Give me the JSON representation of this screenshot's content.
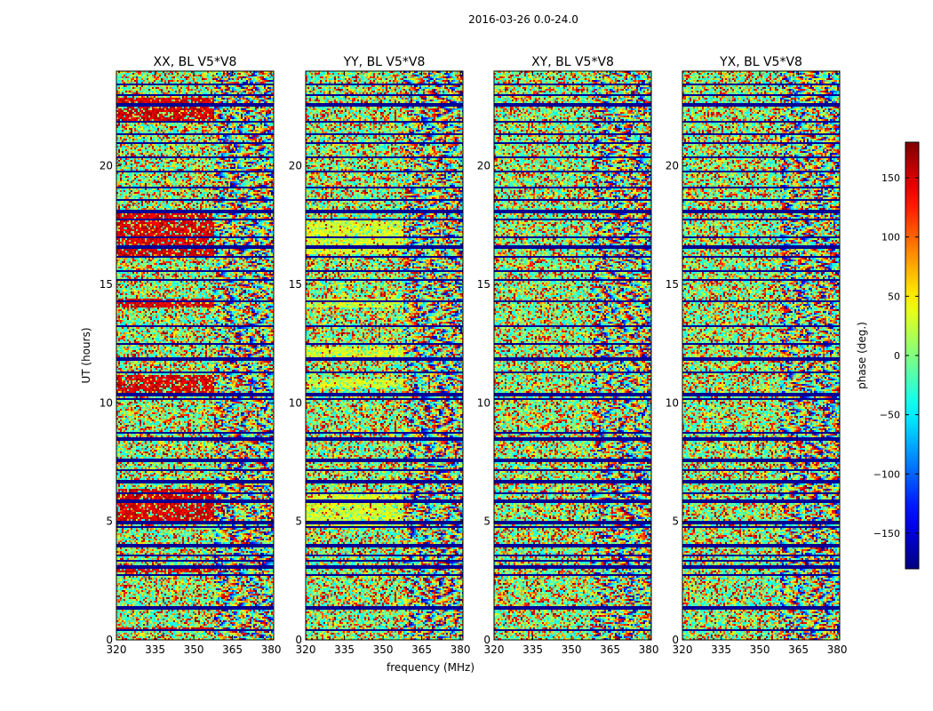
{
  "figure": {
    "suptitle": "2016-03-26 0.0-24.0"
  },
  "chart_data": [
    {
      "type": "heatmap",
      "title": "XX, BL V5*V8",
      "ylabel": "UT (hours)",
      "xlabel": "",
      "xlim": [
        320,
        381
      ],
      "ylim": [
        0,
        24
      ],
      "xticks": [
        "320",
        "335",
        "350",
        "365",
        "380"
      ],
      "yticks": [
        "0",
        "5",
        "10",
        "15",
        "20"
      ],
      "colormap": "jet",
      "bias_bands_hours": [
        [
          0.4,
          0.6
        ],
        [
          2.9,
          3.2
        ],
        [
          5.0,
          6.4
        ],
        [
          10.5,
          11.2
        ],
        [
          14.1,
          14.4
        ],
        [
          16.2,
          18.0
        ],
        [
          21.9,
          22.9
        ]
      ],
      "bias_phase_deg": 150
    },
    {
      "type": "heatmap",
      "title": "YY, BL V5*V8",
      "ylabel": "",
      "xlabel": "frequency (MHz)",
      "xlim": [
        320,
        381
      ],
      "ylim": [
        0,
        24
      ],
      "xticks": [
        "320",
        "335",
        "350",
        "365",
        "380"
      ],
      "yticks": [
        "0",
        "5",
        "10",
        "15",
        "20"
      ],
      "colormap": "jet",
      "bias_bands_hours": [
        [
          4.8,
          6.2
        ],
        [
          10.7,
          11.1
        ],
        [
          12.0,
          12.4
        ],
        [
          14.1,
          14.4
        ],
        [
          16.3,
          17.8
        ]
      ],
      "bias_phase_deg": 30
    },
    {
      "type": "heatmap",
      "title": "XY, BL V5*V8",
      "ylabel": "",
      "xlabel": "",
      "xlim": [
        320,
        381
      ],
      "ylim": [
        0,
        24
      ],
      "xticks": [
        "320",
        "335",
        "350",
        "365",
        "380"
      ],
      "yticks": [
        "0",
        "5",
        "10",
        "15",
        "20"
      ],
      "colormap": "jet",
      "bias_bands_hours": [],
      "bias_phase_deg": 0
    },
    {
      "type": "heatmap",
      "title": "YX, BL V5*V8",
      "ylabel": "",
      "xlabel": "",
      "xlim": [
        320,
        381
      ],
      "ylim": [
        0,
        24
      ],
      "xticks": [
        "320",
        "335",
        "350",
        "365",
        "380"
      ],
      "yticks": [
        "0",
        "5",
        "10",
        "15",
        "20"
      ],
      "colormap": "jet",
      "bias_bands_hours": [],
      "bias_phase_deg": 0
    }
  ],
  "colorbar": {
    "label": "phase (deg.)",
    "range": [
      -180,
      180
    ],
    "ticks": [
      "150",
      "100",
      "50",
      "0",
      "−50",
      "−100",
      "−150"
    ],
    "tick_values": [
      150,
      100,
      50,
      0,
      -50,
      -100,
      -150
    ]
  },
  "gap_rows_hours": [
    0.45,
    1.4,
    2.8,
    3.1,
    3.35,
    3.6,
    4.0,
    4.8,
    5.0,
    5.9,
    6.2,
    6.7,
    7.2,
    7.6,
    8.5,
    8.8,
    10.2,
    10.4,
    11.3,
    11.9,
    12.5,
    13.3,
    14.3,
    15.2,
    15.6,
    16.2,
    16.6,
    17.0,
    17.8,
    18.1,
    18.6,
    19.1,
    19.8,
    20.4,
    21.0,
    21.4,
    21.9,
    22.6,
    23.0,
    23.5
  ]
}
